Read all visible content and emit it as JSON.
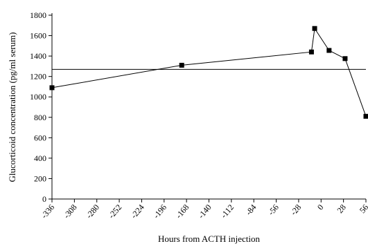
{
  "chart_data": {
    "type": "line",
    "title": "",
    "xlabel": "Hours from ACTH injection",
    "ylabel": "Glucorticoid concentration (pg/ml serum)",
    "xlim": [
      -336,
      56
    ],
    "ylim": [
      0,
      1800
    ],
    "x_ticks": [
      -336,
      -308,
      -280,
      -252,
      -224,
      -196,
      -168,
      -140,
      -112,
      -84,
      -56,
      -28,
      0,
      28,
      56
    ],
    "y_ticks": [
      0,
      200,
      400,
      600,
      800,
      1000,
      1200,
      1400,
      1600,
      1800
    ],
    "series": [
      {
        "x": [
          -336,
          -174,
          -12,
          -8,
          10,
          30,
          56
        ],
        "y": [
          1090,
          1310,
          1440,
          1670,
          1455,
          1375,
          810
        ]
      }
    ],
    "reference_line": {
      "y": 1270
    },
    "marker": "square",
    "grid": false,
    "legend": "none"
  }
}
